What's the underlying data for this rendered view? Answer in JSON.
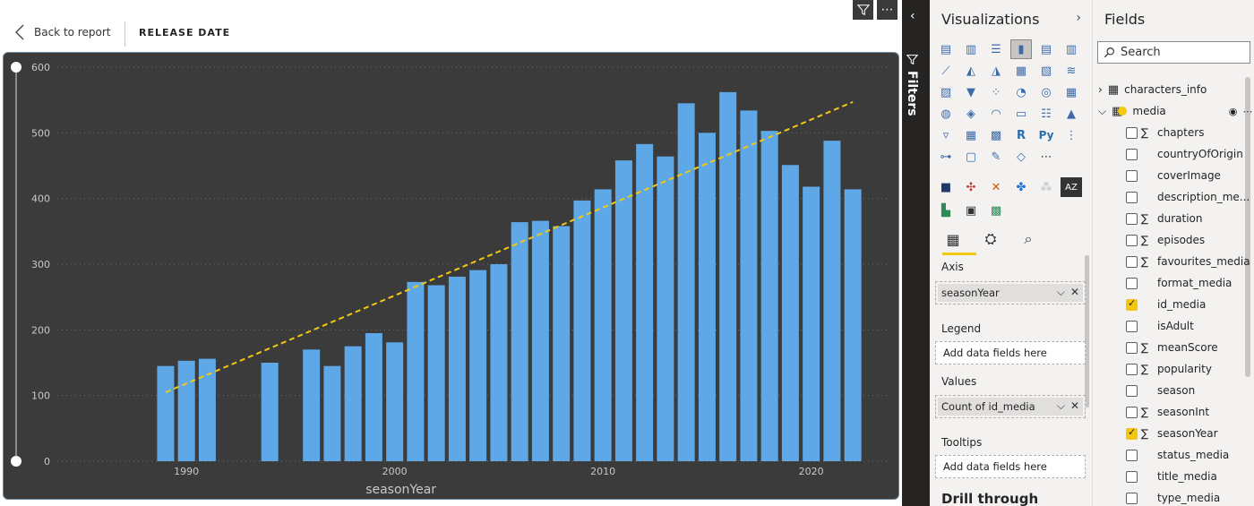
{
  "topbar": {
    "back_label": "Back to report",
    "page_name": "RELEASE DATE"
  },
  "chart_data": {
    "type": "bar",
    "x": [
      1989,
      1990,
      1991,
      1994,
      1996,
      1997,
      1998,
      1999,
      2000,
      2001,
      2002,
      2003,
      2004,
      2005,
      2006,
      2007,
      2008,
      2009,
      2010,
      2011,
      2012,
      2013,
      2014,
      2015,
      2016,
      2017,
      2018,
      2019,
      2020,
      2021,
      2022
    ],
    "values": [
      145,
      153,
      156,
      150,
      170,
      145,
      175,
      195,
      181,
      273,
      268,
      281,
      291,
      300,
      364,
      366,
      358,
      397,
      414,
      458,
      483,
      464,
      545,
      500,
      562,
      534,
      503,
      451,
      418,
      488,
      414
    ],
    "xlabel": "seasonYear",
    "ylabel": "",
    "xticks": [
      1990,
      2000,
      2010,
      2020
    ],
    "yticks": [
      0,
      100,
      200,
      300,
      400,
      500,
      600
    ],
    "ylim": [
      0,
      600
    ],
    "grid": true,
    "bar_color": "#5ea8e8",
    "trend_line": {
      "x": [
        1989,
        2022
      ],
      "y": [
        105,
        547
      ],
      "color": "#f2c811",
      "style": "dashed"
    }
  },
  "filters": {
    "label": "Filters"
  },
  "visualizations": {
    "title": "Visualizations",
    "wells": {
      "axis_label": "Axis",
      "axis_field": "seasonYear",
      "legend_label": "Legend",
      "legend_placeholder": "Add data fields here",
      "values_label": "Values",
      "values_field": "Count of id_media",
      "tooltips_label": "Tooltips",
      "tooltips_placeholder": "Add data fields here",
      "drill_label": "Drill through"
    }
  },
  "fields": {
    "title": "Fields",
    "search_placeholder": "Search",
    "tables": [
      {
        "name": "characters_info"
      },
      {
        "name": "media"
      }
    ],
    "media_fields": [
      {
        "name": "chapters",
        "sigma": true,
        "checked": false
      },
      {
        "name": "countryOfOrigin",
        "sigma": false,
        "checked": false
      },
      {
        "name": "coverImage",
        "sigma": false,
        "checked": false
      },
      {
        "name": "description_me...",
        "sigma": false,
        "checked": false
      },
      {
        "name": "duration",
        "sigma": true,
        "checked": false
      },
      {
        "name": "episodes",
        "sigma": true,
        "checked": false
      },
      {
        "name": "favourites_media",
        "sigma": true,
        "checked": false
      },
      {
        "name": "format_media",
        "sigma": false,
        "checked": false
      },
      {
        "name": "id_media",
        "sigma": false,
        "checked": true
      },
      {
        "name": "isAdult",
        "sigma": false,
        "checked": false
      },
      {
        "name": "meanScore",
        "sigma": true,
        "checked": false
      },
      {
        "name": "popularity",
        "sigma": true,
        "checked": false
      },
      {
        "name": "season",
        "sigma": false,
        "checked": false
      },
      {
        "name": "seasonInt",
        "sigma": true,
        "checked": false
      },
      {
        "name": "seasonYear",
        "sigma": true,
        "checked": true
      },
      {
        "name": "status_media",
        "sigma": false,
        "checked": false
      },
      {
        "name": "title_media",
        "sigma": false,
        "checked": false
      },
      {
        "name": "type_media",
        "sigma": false,
        "checked": false
      }
    ]
  }
}
